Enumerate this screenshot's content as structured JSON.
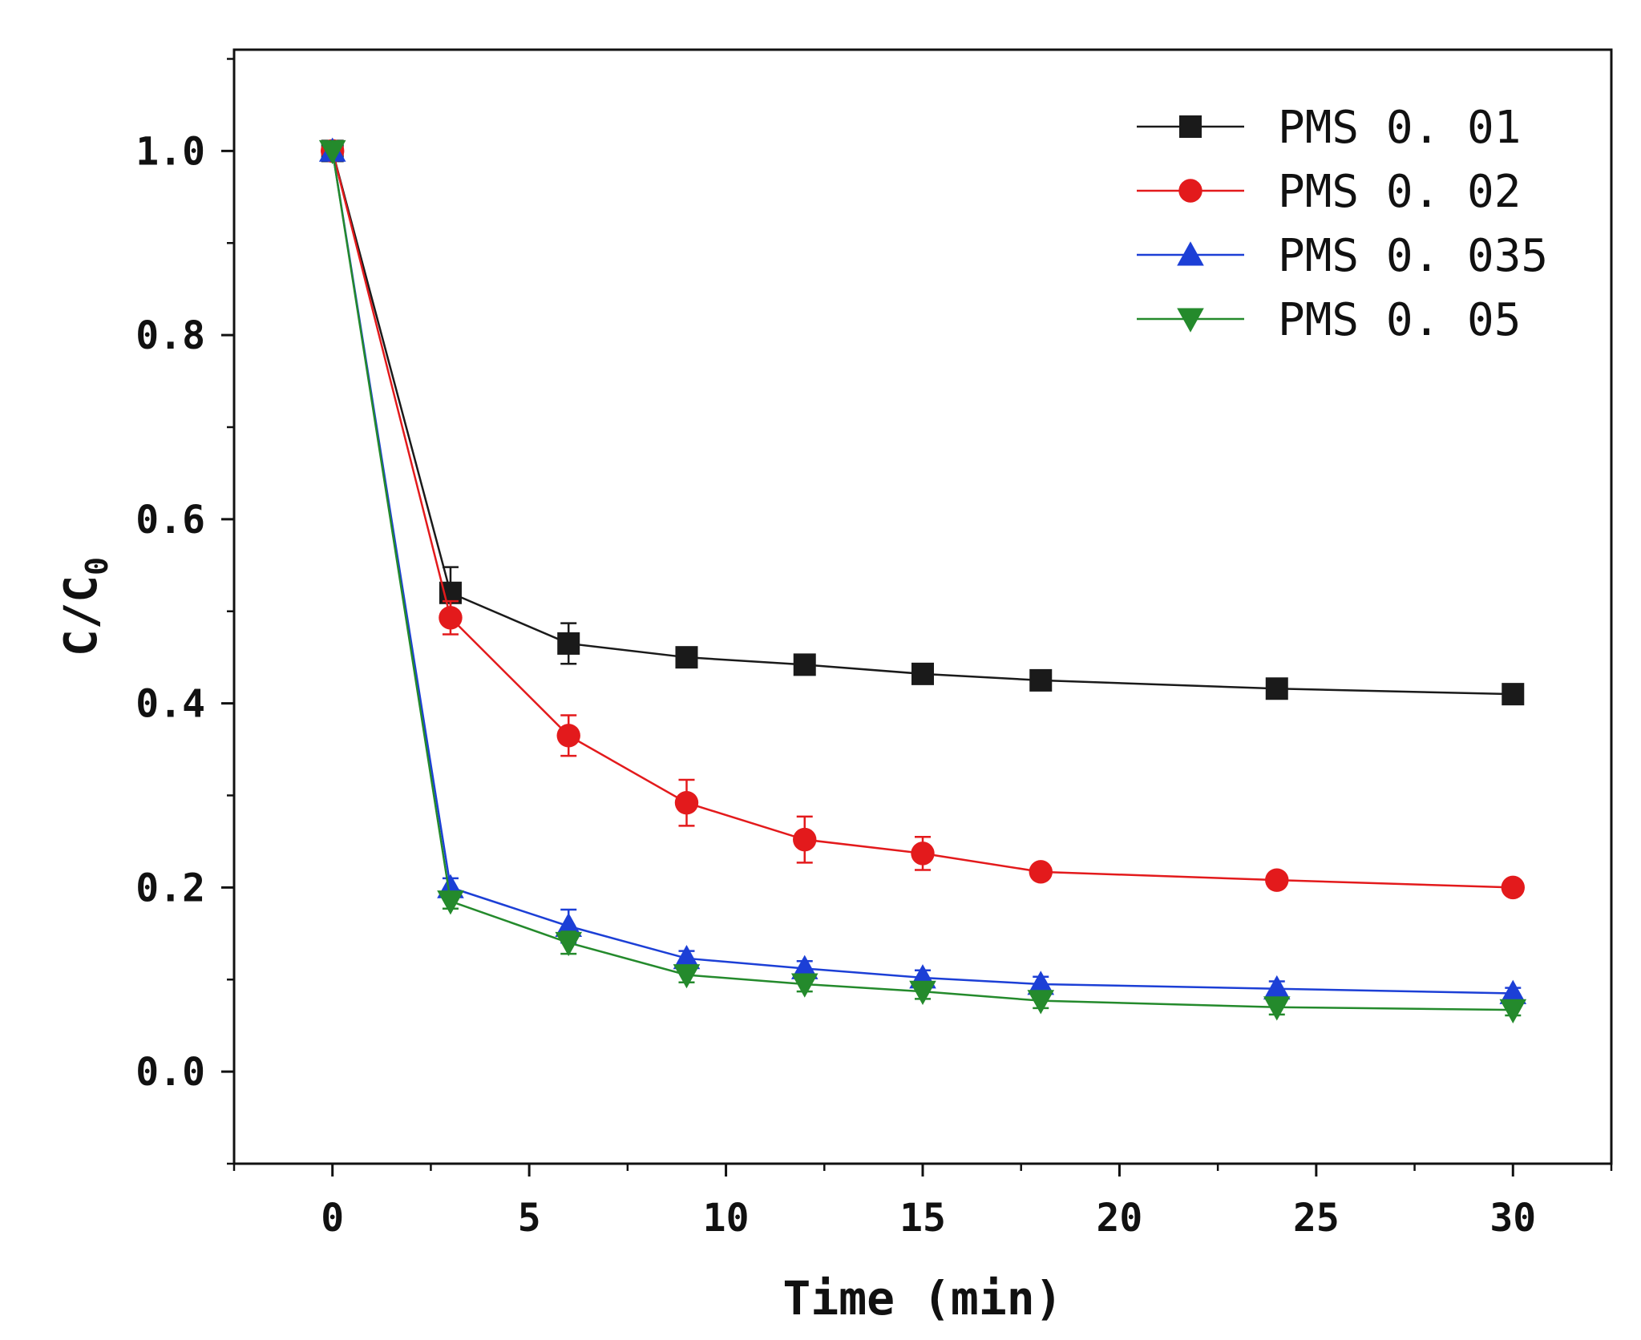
{
  "chart_data": {
    "type": "line",
    "title": "",
    "xlabel": "Time (min)",
    "ylabel_main": "C/C",
    "ylabel_sub": "0",
    "xlim": [
      -2.5,
      32.5
    ],
    "ylim": [
      -0.1,
      1.11
    ],
    "xticks": [
      0,
      5,
      10,
      15,
      20,
      25,
      30
    ],
    "xtick_labels": [
      "0",
      "5",
      "10",
      "15",
      "20",
      "25",
      "30"
    ],
    "yticks": [
      0.0,
      0.2,
      0.4,
      0.6,
      0.8,
      1.0
    ],
    "ytick_labels": [
      "0.0",
      "0.2",
      "0.4",
      "0.6",
      "0.8",
      "1.0"
    ],
    "grid": false,
    "legend_position": "top-right",
    "x": [
      0,
      3,
      6,
      9,
      12,
      15,
      18,
      24,
      30
    ],
    "series": [
      {
        "name": "PMS 0.01",
        "legend_label": "PMS  0. 01",
        "color": "#1a1a1a",
        "marker": "square",
        "values": [
          1.0,
          0.52,
          0.465,
          0.45,
          0.442,
          0.432,
          0.425,
          0.416,
          0.41
        ],
        "errors": [
          0,
          0.028,
          0.022,
          0.008,
          0.008,
          0.008,
          0.008,
          0.008,
          0.006
        ]
      },
      {
        "name": "PMS 0.02",
        "legend_label": "PMS  0. 02",
        "color": "#e31a1c",
        "marker": "circle",
        "values": [
          1.0,
          0.493,
          0.365,
          0.292,
          0.252,
          0.237,
          0.217,
          0.208,
          0.2
        ],
        "errors": [
          0,
          0.018,
          0.022,
          0.025,
          0.025,
          0.018,
          0.008,
          0.008,
          0.006
        ]
      },
      {
        "name": "PMS 0.035",
        "legend_label": "PMS  0. 035",
        "color": "#1c3fd6",
        "marker": "triangle-up",
        "values": [
          1.0,
          0.2,
          0.158,
          0.123,
          0.112,
          0.102,
          0.095,
          0.09,
          0.085
        ],
        "errors": [
          0,
          0.01,
          0.018,
          0.008,
          0.008,
          0.008,
          0.008,
          0.008,
          0.006
        ]
      },
      {
        "name": "PMS 0.05",
        "legend_label": "PMS  0. 05",
        "color": "#248a2c",
        "marker": "triangle-down",
        "values": [
          1.0,
          0.185,
          0.14,
          0.105,
          0.095,
          0.087,
          0.077,
          0.07,
          0.067
        ],
        "errors": [
          0,
          0.008,
          0.012,
          0.008,
          0.008,
          0.008,
          0.008,
          0.008,
          0.006
        ]
      }
    ]
  }
}
